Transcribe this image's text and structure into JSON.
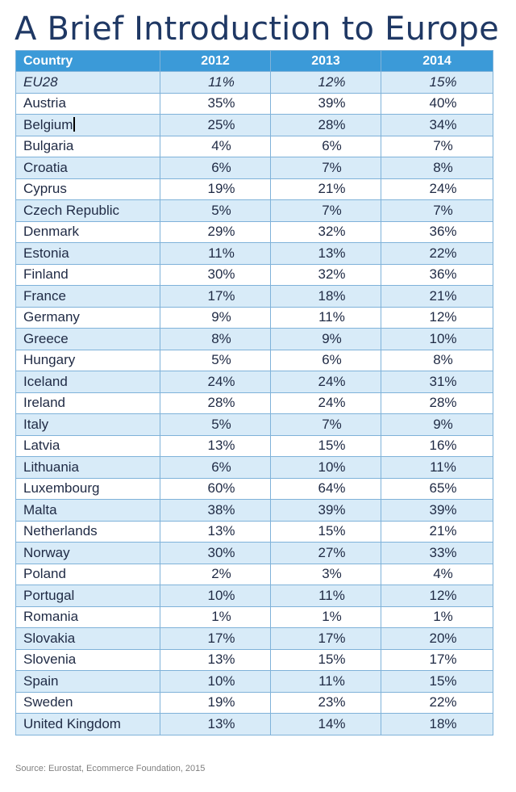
{
  "slide": {
    "title": "A Brief Introduction to Europe",
    "source": "Source: Eurostat, Ecommerce Foundation, 2015"
  },
  "table": {
    "headers": [
      "Country",
      "2012",
      "2013",
      "2014"
    ],
    "rows": [
      {
        "country": "EU28",
        "v2012": "11%",
        "v2013": "12%",
        "v2014": "15%",
        "italic": true
      },
      {
        "country": "Austria",
        "v2012": "35%",
        "v2013": "39%",
        "v2014": "40%"
      },
      {
        "country": "Belgium",
        "v2012": "25%",
        "v2013": "28%",
        "v2014": "34%",
        "cursor": true
      },
      {
        "country": "Bulgaria",
        "v2012": "4%",
        "v2013": "6%",
        "v2014": "7%"
      },
      {
        "country": "Croatia",
        "v2012": "6%",
        "v2013": "7%",
        "v2014": "8%"
      },
      {
        "country": "Cyprus",
        "v2012": "19%",
        "v2013": "21%",
        "v2014": "24%"
      },
      {
        "country": "Czech Republic",
        "v2012": "5%",
        "v2013": "7%",
        "v2014": "7%"
      },
      {
        "country": "Denmark",
        "v2012": "29%",
        "v2013": "32%",
        "v2014": "36%"
      },
      {
        "country": "Estonia",
        "v2012": "11%",
        "v2013": "13%",
        "v2014": "22%"
      },
      {
        "country": "Finland",
        "v2012": "30%",
        "v2013": "32%",
        "v2014": "36%"
      },
      {
        "country": "France",
        "v2012": "17%",
        "v2013": "18%",
        "v2014": "21%"
      },
      {
        "country": "Germany",
        "v2012": "9%",
        "v2013": "11%",
        "v2014": "12%"
      },
      {
        "country": "Greece",
        "v2012": "8%",
        "v2013": "9%",
        "v2014": "10%"
      },
      {
        "country": "Hungary",
        "v2012": "5%",
        "v2013": "6%",
        "v2014": "8%"
      },
      {
        "country": "Iceland",
        "v2012": "24%",
        "v2013": "24%",
        "v2014": "31%"
      },
      {
        "country": "Ireland",
        "v2012": "28%",
        "v2013": "24%",
        "v2014": "28%"
      },
      {
        "country": "Italy",
        "v2012": "5%",
        "v2013": "7%",
        "v2014": "9%"
      },
      {
        "country": "Latvia",
        "v2012": "13%",
        "v2013": "15%",
        "v2014": "16%"
      },
      {
        "country": "Lithuania",
        "v2012": "6%",
        "v2013": "10%",
        "v2014": "11%"
      },
      {
        "country": "Luxembourg",
        "v2012": "60%",
        "v2013": "64%",
        "v2014": "65%"
      },
      {
        "country": "Malta",
        "v2012": "38%",
        "v2013": "39%",
        "v2014": "39%"
      },
      {
        "country": "Netherlands",
        "v2012": "13%",
        "v2013": "15%",
        "v2014": "21%"
      },
      {
        "country": "Norway",
        "v2012": "30%",
        "v2013": "27%",
        "v2014": "33%"
      },
      {
        "country": "Poland",
        "v2012": "2%",
        "v2013": "3%",
        "v2014": "4%"
      },
      {
        "country": "Portugal",
        "v2012": "10%",
        "v2013": "11%",
        "v2014": "12%"
      },
      {
        "country": "Romania",
        "v2012": "1%",
        "v2013": "1%",
        "v2014": "1%"
      },
      {
        "country": "Slovakia",
        "v2012": "17%",
        "v2013": "17%",
        "v2014": "20%"
      },
      {
        "country": "Slovenia",
        "v2012": "13%",
        "v2013": "15%",
        "v2014": "17%"
      },
      {
        "country": "Spain",
        "v2012": "10%",
        "v2013": "11%",
        "v2014": "15%"
      },
      {
        "country": "Sweden",
        "v2012": "19%",
        "v2013": "23%",
        "v2014": "22%"
      },
      {
        "country": "United Kingdom",
        "v2012": "13%",
        "v2013": "14%",
        "v2014": "18%"
      }
    ]
  },
  "colors": {
    "title": "#1f3864",
    "header_bg": "#3b9ad8",
    "header_text": "#ffffff",
    "band_row": "#d8ebf8",
    "plain_row": "#ffffff",
    "grid_line": "#7fb2d9",
    "body_text": "#1f2a44",
    "source_text": "#7f7f7f"
  }
}
